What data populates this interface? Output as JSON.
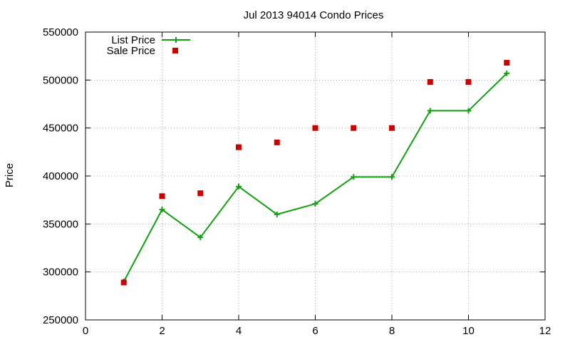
{
  "chart_data": {
    "type": "line",
    "title": "Jul 2013 94014 Condo Prices",
    "xlabel": "",
    "ylabel": "Price",
    "xlim": [
      0,
      12
    ],
    "ylim": [
      250000,
      550000
    ],
    "x_ticks": [
      0,
      2,
      4,
      6,
      8,
      10,
      12
    ],
    "y_ticks": [
      250000,
      300000,
      350000,
      400000,
      450000,
      500000,
      550000
    ],
    "grid": true,
    "legend_position": "top-left",
    "series": [
      {
        "name": "List Price",
        "kind": "line-with-plus-markers",
        "color": "#11a011",
        "x": [
          1,
          2,
          3,
          4,
          5,
          6,
          7,
          8,
          9,
          10,
          11
        ],
        "y": [
          290000,
          365000,
          336000,
          389000,
          360000,
          371000,
          399000,
          399000,
          468000,
          468000,
          507000
        ]
      },
      {
        "name": "Sale Price",
        "kind": "square-markers",
        "color": "#cc0000",
        "x": [
          1,
          2,
          3,
          4,
          5,
          6,
          7,
          8,
          9,
          10,
          11
        ],
        "y": [
          289000,
          379000,
          382000,
          430000,
          435000,
          450000,
          450000,
          450000,
          498000,
          498000,
          518000
        ]
      }
    ]
  }
}
